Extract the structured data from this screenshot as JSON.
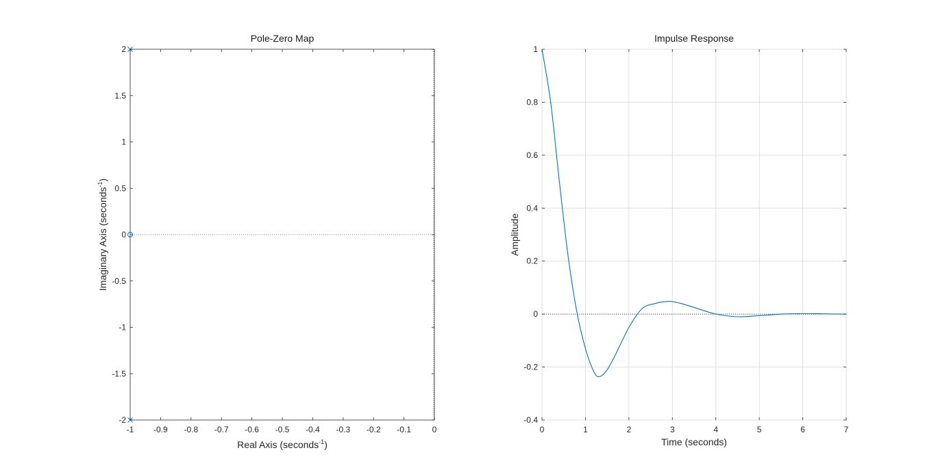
{
  "chart_data": [
    {
      "type": "scatter",
      "title": "Pole-Zero Map",
      "xlabel": "Real Axis (seconds",
      "xlabel_sup": "-1",
      "xlabel_close": ")",
      "ylabel": "Imaginary Axis (seconds",
      "ylabel_sup": "-1",
      "ylabel_close": ")",
      "xlim": [
        -1,
        0
      ],
      "ylim": [
        -2,
        2
      ],
      "xticks": [
        -1,
        -0.9,
        -0.8,
        -0.7,
        -0.6,
        -0.5,
        -0.4,
        -0.3,
        -0.2,
        -0.1,
        0
      ],
      "xtick_labels": [
        "-1",
        "-0.9",
        "-0.8",
        "-0.7",
        "-0.6",
        "-0.5",
        "-0.4",
        "-0.3",
        "-0.2",
        "-0.1",
        "0"
      ],
      "yticks": [
        -2,
        -1.5,
        -1,
        -0.5,
        0,
        0.5,
        1,
        1.5,
        2
      ],
      "ytick_labels": [
        "-2",
        "-1.5",
        "-1",
        "-0.5",
        "0",
        "0.5",
        "1",
        "1.5",
        "2"
      ],
      "grid": false,
      "poles": [
        {
          "re": -1,
          "im": 2
        },
        {
          "re": -1,
          "im": -2
        }
      ],
      "zeros": [
        {
          "re": -1,
          "im": 0
        }
      ],
      "series_color": "#0072BD"
    },
    {
      "type": "line",
      "title": "Impulse Response",
      "xlabel": "Time (seconds)",
      "ylabel": "Amplitude",
      "xlim": [
        0,
        7
      ],
      "ylim": [
        -0.4,
        1
      ],
      "xticks": [
        0,
        1,
        2,
        3,
        4,
        5,
        6,
        7
      ],
      "xtick_labels": [
        "0",
        "1",
        "2",
        "3",
        "4",
        "5",
        "6",
        "7"
      ],
      "yticks": [
        -0.4,
        -0.2,
        0,
        0.2,
        0.4,
        0.6,
        0.8,
        1
      ],
      "ytick_labels": [
        "-0.4",
        "-0.2",
        "0",
        "0.2",
        "0.4",
        "0.6",
        "0.8",
        "1"
      ],
      "grid": true,
      "x": [
        0,
        0.2,
        0.4,
        0.6,
        0.8,
        1.0,
        1.2,
        1.33,
        1.5,
        1.7,
        2.0,
        2.3,
        2.6,
        2.93,
        3.2,
        3.5,
        4.0,
        4.5,
        5.0,
        5.5,
        6.0,
        6.5,
        7.0
      ],
      "y": [
        1.0,
        0.8,
        0.5,
        0.22,
        0.01,
        -0.13,
        -0.22,
        -0.236,
        -0.21,
        -0.15,
        -0.05,
        0.02,
        0.04,
        0.048,
        0.04,
        0.025,
        0.0,
        -0.01,
        -0.006,
        0.0,
        0.002,
        0.001,
        0.0
      ],
      "series_color": "#0072BD"
    }
  ]
}
